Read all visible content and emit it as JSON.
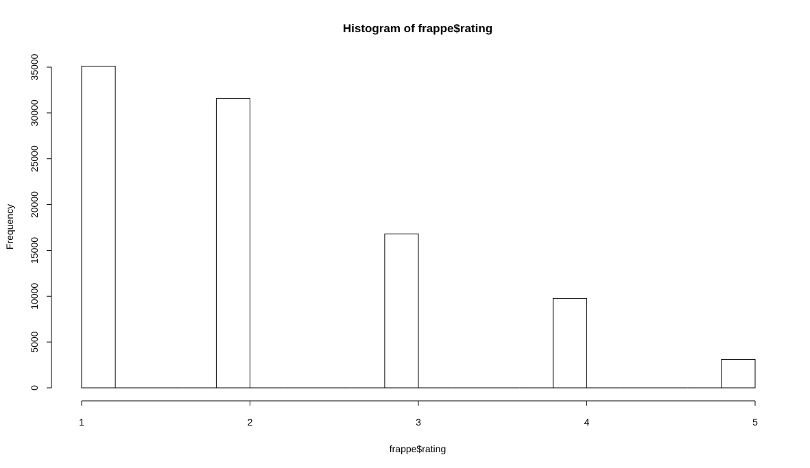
{
  "chart_data": {
    "type": "bar",
    "title": "Histogram of frappe$rating",
    "xlabel": "frappe$rating",
    "ylabel": "Frequency",
    "xlim": [
      1,
      5
    ],
    "ylim": [
      0,
      35000
    ],
    "x_ticks": [
      "1",
      "2",
      "3",
      "4",
      "5"
    ],
    "y_ticks": [
      "0",
      "5000",
      "10000",
      "15000",
      "20000",
      "25000",
      "30000",
      "35000"
    ],
    "bins": [
      {
        "from": 1.0,
        "to": 1.2,
        "count": 35100
      },
      {
        "from": 1.2,
        "to": 1.4,
        "count": 0
      },
      {
        "from": 1.4,
        "to": 1.6,
        "count": 0
      },
      {
        "from": 1.6,
        "to": 1.8,
        "count": 0
      },
      {
        "from": 1.8,
        "to": 2.0,
        "count": 31600
      },
      {
        "from": 2.0,
        "to": 2.2,
        "count": 0
      },
      {
        "from": 2.2,
        "to": 2.4,
        "count": 0
      },
      {
        "from": 2.4,
        "to": 2.6,
        "count": 0
      },
      {
        "from": 2.6,
        "to": 2.8,
        "count": 0
      },
      {
        "from": 2.8,
        "to": 3.0,
        "count": 16800
      },
      {
        "from": 3.0,
        "to": 3.2,
        "count": 0
      },
      {
        "from": 3.2,
        "to": 3.4,
        "count": 0
      },
      {
        "from": 3.4,
        "to": 3.6,
        "count": 0
      },
      {
        "from": 3.6,
        "to": 3.8,
        "count": 0
      },
      {
        "from": 3.8,
        "to": 4.0,
        "count": 9750
      },
      {
        "from": 4.0,
        "to": 4.2,
        "count": 0
      },
      {
        "from": 4.2,
        "to": 4.4,
        "count": 0
      },
      {
        "from": 4.4,
        "to": 4.6,
        "count": 0
      },
      {
        "from": 4.6,
        "to": 4.8,
        "count": 0
      },
      {
        "from": 4.8,
        "to": 5.0,
        "count": 3100
      }
    ],
    "grid": false,
    "bar_fill": "#ffffff",
    "bar_stroke": "#000000"
  }
}
